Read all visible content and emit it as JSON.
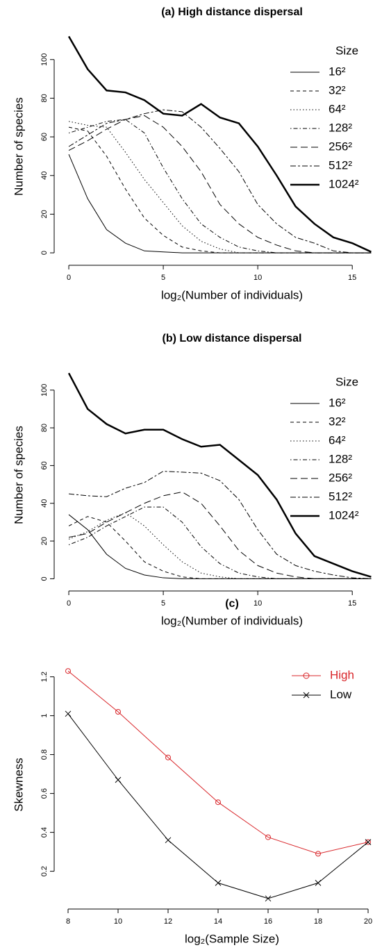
{
  "chart_data": [
    {
      "type": "line",
      "title": "(a) High distance dispersal",
      "xlabel": "log₂(Number of individuals)",
      "ylabel": "Number of species",
      "x": [
        0,
        1,
        2,
        3,
        4,
        5,
        6,
        7,
        8,
        9,
        10,
        11,
        12,
        13,
        14,
        15,
        16
      ],
      "xlim": [
        -0.7,
        16.5
      ],
      "ylim": [
        -5,
        115
      ],
      "xticks": [
        0,
        5,
        10,
        15
      ],
      "yticks": [
        0,
        20,
        40,
        60,
        80,
        100
      ],
      "legend_title": "Size",
      "legend": "upper right",
      "series": [
        {
          "name": "16²",
          "color": "#000000",
          "linestyle": "solid",
          "linewidth": 1,
          "values": [
            51,
            28,
            12,
            5,
            1,
            0.5,
            0,
            0,
            0,
            0,
            0,
            0,
            0,
            0,
            0,
            0,
            0
          ]
        },
        {
          "name": "32²",
          "color": "#000000",
          "linestyle": "dashed",
          "linewidth": 1,
          "values": [
            65,
            63,
            50,
            33,
            18,
            9,
            3,
            1,
            0,
            0,
            0,
            0,
            0,
            0,
            0,
            0,
            0
          ]
        },
        {
          "name": "64²",
          "color": "#000000",
          "linestyle": "dotted",
          "linewidth": 1,
          "values": [
            68,
            66,
            65,
            52,
            38,
            26,
            14,
            6,
            2,
            0,
            0,
            0,
            0,
            0,
            0,
            0,
            0
          ]
        },
        {
          "name": "128²",
          "color": "#000000",
          "linestyle": "dotdash",
          "linewidth": 1,
          "values": [
            62,
            65,
            68,
            69,
            62,
            44,
            28,
            15,
            8,
            3,
            1,
            0,
            0,
            0,
            0,
            0,
            0
          ]
        },
        {
          "name": "256²",
          "color": "#000000",
          "linestyle": "longdash",
          "linewidth": 1,
          "values": [
            53,
            58,
            64,
            69,
            71,
            65,
            55,
            42,
            25,
            15,
            8,
            4,
            1,
            0,
            0,
            0,
            0
          ]
        },
        {
          "name": "512²",
          "color": "#000000",
          "linestyle": "twodash",
          "linewidth": 1,
          "values": [
            55,
            61,
            67,
            69,
            72,
            74,
            73,
            65,
            54,
            42,
            25,
            15,
            8,
            5,
            1,
            0,
            0
          ]
        },
        {
          "name": "1024²",
          "color": "#000000",
          "linestyle": "solid",
          "linewidth": 2.5,
          "values": [
            112,
            95,
            84,
            83,
            79,
            72,
            71,
            77,
            70,
            67,
            55,
            40,
            24,
            15,
            8,
            5,
            0.5
          ]
        }
      ]
    },
    {
      "type": "line",
      "title": "(b) Low distance dispersal",
      "xlabel": "log₂(Number of individuals)",
      "ylabel": "Number of species",
      "x": [
        0,
        1,
        2,
        3,
        4,
        5,
        6,
        7,
        8,
        9,
        10,
        11,
        12,
        13,
        14,
        15,
        16
      ],
      "xlim": [
        -0.7,
        16.5
      ],
      "ylim": [
        -5,
        115
      ],
      "xticks": [
        0,
        5,
        10,
        15
      ],
      "yticks": [
        0,
        20,
        40,
        60,
        80,
        100
      ],
      "legend_title": "Size",
      "legend": "upper right",
      "series": [
        {
          "name": "16²",
          "color": "#000000",
          "linestyle": "solid",
          "linewidth": 1,
          "values": [
            34,
            26,
            13,
            5.5,
            2,
            0.5,
            0,
            0,
            0,
            0,
            0,
            0,
            0,
            0,
            0,
            0,
            0
          ]
        },
        {
          "name": "32²",
          "color": "#000000",
          "linestyle": "dashed",
          "linewidth": 1,
          "values": [
            28,
            33,
            30,
            20,
            9,
            4,
            1,
            0,
            0,
            0,
            0,
            0,
            0,
            0,
            0,
            0,
            0
          ]
        },
        {
          "name": "64²",
          "color": "#000000",
          "linestyle": "dotted",
          "linewidth": 1,
          "values": [
            21,
            25,
            31,
            35,
            28,
            18,
            9,
            3,
            1,
            0,
            0,
            0,
            0,
            0,
            0,
            0,
            0
          ]
        },
        {
          "name": "128²",
          "color": "#000000",
          "linestyle": "dotdash",
          "linewidth": 1,
          "values": [
            18,
            22,
            28,
            33,
            38,
            38,
            30,
            17,
            8,
            3,
            1,
            0,
            0,
            0,
            0,
            0,
            0
          ]
        },
        {
          "name": "256²",
          "color": "#000000",
          "linestyle": "longdash",
          "linewidth": 1,
          "values": [
            22,
            24,
            30,
            35,
            40,
            44,
            46,
            40,
            28,
            15,
            7,
            3,
            1,
            0,
            0,
            0,
            0
          ]
        },
        {
          "name": "512²",
          "color": "#000000",
          "linestyle": "twodash",
          "linewidth": 1,
          "values": [
            45,
            44,
            43.5,
            48,
            51,
            57,
            56.5,
            56,
            52,
            42,
            26,
            13,
            7,
            4,
            2,
            0.5,
            0
          ]
        },
        {
          "name": "1024²",
          "color": "#000000",
          "linestyle": "solid",
          "linewidth": 2.5,
          "values": [
            109,
            90,
            82,
            77,
            79,
            79,
            74,
            70,
            71,
            63,
            55,
            42,
            24,
            12,
            8,
            4,
            1
          ]
        }
      ]
    },
    {
      "type": "line",
      "title": "(c)",
      "xlabel": "log₂(Sample Size)",
      "ylabel": "Skewness",
      "x": [
        8,
        10,
        12,
        14,
        16,
        18,
        20
      ],
      "xlim": [
        7.5,
        20.5
      ],
      "ylim": [
        0.02,
        1.27
      ],
      "xticks": [
        8,
        10,
        12,
        14,
        16,
        18,
        20
      ],
      "yticks": [
        0.2,
        0.4,
        0.6,
        0.8,
        1.0,
        1.2
      ],
      "legend": "upper right",
      "series": [
        {
          "name": "High",
          "color": "#d9262a",
          "linestyle": "solid",
          "linewidth": 1,
          "marker": "circle",
          "values": [
            1.23,
            1.02,
            0.785,
            0.555,
            0.375,
            0.29,
            0.35
          ]
        },
        {
          "name": "Low",
          "color": "#000000",
          "linestyle": "solid",
          "linewidth": 1,
          "marker": "x",
          "values": [
            1.01,
            0.67,
            0.36,
            0.14,
            0.06,
            0.14,
            0.35
          ]
        }
      ]
    }
  ]
}
